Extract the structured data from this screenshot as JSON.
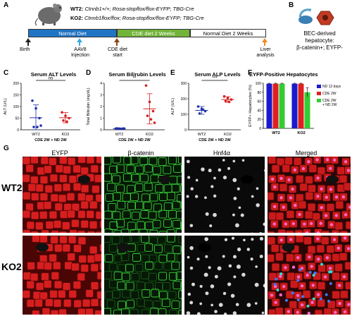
{
  "panels": {
    "A": {
      "letter": "A",
      "genotypes": [
        {
          "name": "WT2:",
          "genes": "Ctnnb1+/+; Rosa-stopflox/flox-EYFP; TBG-Cre"
        },
        {
          "name": "KO2:",
          "genes": "Ctnnb1flox/flox; Rosa-stopflox/flox-EYFP; TBG-Cre"
        }
      ],
      "timeline": [
        {
          "label": "Normal Diet",
          "color": "#1f74c4"
        },
        {
          "label": "CDE diet 2 Weeks",
          "color": "#72b33a"
        },
        {
          "label": "Normal Diet 2 Weeks",
          "color": "#ffffff"
        }
      ],
      "events": [
        {
          "label": "Birth",
          "color": "#222222"
        },
        {
          "label": "AAV8\nInjection",
          "color": "#3aa9e0"
        },
        {
          "label": "CDE diet\nstart",
          "color": "#8b4513"
        },
        {
          "label": "Liver\nanalysis",
          "color": "#f08a24"
        }
      ]
    },
    "B": {
      "letter": "B",
      "caption": "BEC-derived\nhepatocyte:\nβ-catenin+; EYFP-"
    },
    "G": {
      "letter": "G",
      "columns": [
        "EYFP",
        "β-catenin",
        "Hnf4α",
        "Merged"
      ],
      "rows": [
        "WT2",
        "KO2"
      ]
    }
  },
  "chart_data": [
    {
      "panel": "C",
      "type": "scatter",
      "title": "Serum ALT Levels",
      "ylabel": "ALT (U/L)",
      "xlabel": "CDE 2W + ND 2W",
      "categories": [
        "WT2",
        "KO2"
      ],
      "ylim": [
        0,
        200
      ],
      "yticks": [
        0,
        50,
        100,
        150,
        200
      ],
      "series": [
        {
          "name": "WT2",
          "color": "#2233aa",
          "mean": 52,
          "sd": 55,
          "points": [
            125,
            92,
            50,
            12,
            12,
            18
          ]
        },
        {
          "name": "KO2",
          "color": "#d62020",
          "mean": 52,
          "sd": 22,
          "points": [
            75,
            60,
            50,
            40,
            35
          ]
        }
      ],
      "annotation": "ns"
    },
    {
      "panel": "D",
      "type": "scatter",
      "title": "Serum Bilirubin Levels",
      "ylabel": "Total Bilirubin (mg/dL)",
      "xlabel": "CDE 2W + ND 2W",
      "categories": [
        "WT2",
        "KO2"
      ],
      "ylim": [
        0,
        4
      ],
      "yticks": [
        0,
        1,
        2,
        3,
        4
      ],
      "series": [
        {
          "name": "WT2",
          "color": "#2233aa",
          "mean": 0.1,
          "sd": 0.05,
          "points": [
            0.1,
            0.1,
            0.1,
            0.12,
            0.08,
            0.1
          ]
        },
        {
          "name": "KO2",
          "color": "#d62020",
          "mean": 1.8,
          "sd": 1.3,
          "points": [
            3.8,
            2.4,
            1.6,
            1.2,
            0.9,
            0.6
          ]
        }
      ],
      "annotation": "**"
    },
    {
      "panel": "E",
      "type": "scatter",
      "title": "Serum ALP Levels",
      "ylabel": "ALP (U/L)",
      "xlabel": "CDE 2W + ND 2W",
      "categories": [
        "WT2",
        "KO2"
      ],
      "ylim": [
        0,
        300
      ],
      "yticks": [
        0,
        100,
        200,
        300
      ],
      "series": [
        {
          "name": "WT2",
          "color": "#2233aa",
          "mean": 125,
          "sd": 25,
          "points": [
            150,
            135,
            120,
            105,
            130
          ]
        },
        {
          "name": "KO2",
          "color": "#d62020",
          "mean": 195,
          "sd": 18,
          "points": [
            215,
            205,
            195,
            185,
            180
          ]
        }
      ],
      "annotation": "***"
    },
    {
      "panel": "F",
      "type": "bar",
      "title": "EYFP-Positive Hepatocytes",
      "ylabel": "EYFP+ Hepatocytes (%)",
      "categories": [
        "WT2",
        "KO2"
      ],
      "ylim": [
        0,
        100
      ],
      "yticks": [
        0,
        20,
        40,
        60,
        80,
        100
      ],
      "series": [
        {
          "name": "ND 12 days",
          "color": "#1a1acc",
          "values": [
            99,
            99
          ],
          "errors": [
            1,
            1
          ]
        },
        {
          "name": "CDE 2W",
          "color": "#e02020",
          "values": [
            99,
            99
          ],
          "errors": [
            1,
            1
          ]
        },
        {
          "name": "CDE 2W + ND 2W",
          "color": "#33cc33",
          "values": [
            99,
            80
          ],
          "errors": [
            1,
            10
          ]
        }
      ],
      "legend": "right"
    }
  ]
}
